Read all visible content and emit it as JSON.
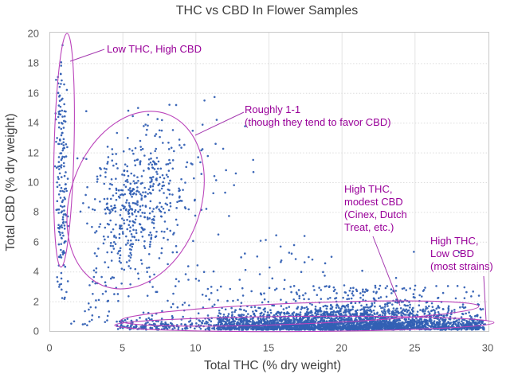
{
  "title": "THC vs CBD In Flower Samples",
  "colors": {
    "point": "#3360b4",
    "ellipse": "#bb44bb",
    "leader": "#a53ab0",
    "annotation_text": "#990099",
    "axis_text": "#3f3f3f",
    "tick_text": "#595959",
    "grid_h": "#dcdcdc",
    "grid_v": "#e3e3e3",
    "border": "#c9c9c9"
  },
  "chart_data": {
    "type": "scatter",
    "title": "THC vs CBD In Flower Samples",
    "xlabel": "Total THC (% dry weight)",
    "ylabel": "Total CBD (% dry weight)",
    "xlim": [
      0,
      30
    ],
    "ylim": [
      0,
      20
    ],
    "x_ticks": [
      0,
      5,
      10,
      15,
      20,
      25,
      30
    ],
    "y_ticks": [
      0,
      2,
      4,
      6,
      8,
      10,
      12,
      14,
      16,
      18,
      20
    ],
    "grid": true,
    "legend": "none",
    "clusters": [
      {
        "name": "low-thc-high-cbd-strip",
        "n": 150,
        "x": {
          "dist": "normal",
          "mean": 0.85,
          "sd": 0.22,
          "min": 0.3,
          "max": 1.5
        },
        "y": {
          "dist": "uniform",
          "min": 4.8,
          "max": 16.3
        }
      },
      {
        "name": "low-thc-high-cbd-top",
        "n": 12,
        "x": {
          "dist": "normal",
          "mean": 0.8,
          "sd": 0.15,
          "min": 0.4,
          "max": 1.2
        },
        "y": {
          "dist": "uniform",
          "min": 16.3,
          "max": 19.3
        }
      },
      {
        "name": "low-thc-tail",
        "n": 16,
        "x": {
          "dist": "normal",
          "mean": 0.9,
          "sd": 0.2,
          "min": 0.4,
          "max": 1.4
        },
        "y": {
          "dist": "uniform",
          "min": 2.0,
          "max": 4.8
        }
      },
      {
        "name": "one-to-one-core",
        "n": 380,
        "rho": 0.35,
        "x": {
          "dist": "normal",
          "mean": 6.1,
          "sd": 1.6,
          "min": 2.2,
          "max": 11.3
        },
        "y": {
          "dist": "normal",
          "mean": 8.6,
          "sd": 2.3,
          "min": 2.8,
          "max": 14.6
        }
      },
      {
        "name": "one-to-one-halo",
        "n": 140,
        "rho": 0.2,
        "x": {
          "dist": "normal",
          "mean": 6.5,
          "sd": 2.6,
          "min": 1.5,
          "max": 13.5
        },
        "y": {
          "dist": "normal",
          "mean": 8.0,
          "sd": 3.6,
          "min": 0.8,
          "max": 15.8
        }
      },
      {
        "name": "mid-low-sparse",
        "n": 70,
        "x": {
          "dist": "uniform",
          "min": 2,
          "max": 12
        },
        "y": {
          "dist": "uniform",
          "min": 0.3,
          "max": 4.5
        }
      },
      {
        "name": "mid-right-sparse",
        "n": 30,
        "x": {
          "dist": "uniform",
          "min": 13,
          "max": 19
        },
        "y": {
          "dist": "uniform",
          "min": 2.5,
          "max": 6.5
        }
      },
      {
        "name": "far-right-sparse",
        "n": 10,
        "x": {
          "dist": "uniform",
          "min": 18,
          "max": 29.5
        },
        "y": {
          "dist": "uniform",
          "min": 2.5,
          "max": 5.5
        }
      },
      {
        "name": "upper-outliers",
        "n": 10,
        "x": {
          "dist": "uniform",
          "min": 10,
          "max": 14.5
        },
        "y": {
          "dist": "uniform",
          "min": 9,
          "max": 15.7
        }
      },
      {
        "name": "band-core",
        "n": 1700,
        "x": {
          "dist": "normal",
          "mean": 19.5,
          "sd": 5.0,
          "min": 6.3,
          "max": 29.8
        },
        "y": {
          "dist": "halfnormal",
          "min": 0.08,
          "sd": 0.5,
          "max": 1.5
        }
      },
      {
        "name": "band-fill",
        "n": 900,
        "x": {
          "dist": "uniform",
          "min": 11.5,
          "max": 29.75
        },
        "y": {
          "dist": "halfnormal",
          "min": 0.08,
          "sd": 0.45,
          "max": 1.4
        }
      },
      {
        "name": "band-upper",
        "n": 420,
        "x": {
          "dist": "normal",
          "mean": 21,
          "sd": 4.3,
          "min": 9.5,
          "max": 29.7
        },
        "y": {
          "dist": "halfnormal",
          "min": 1.0,
          "sd": 0.55,
          "max": 2.3
        }
      },
      {
        "name": "band-top-sparse",
        "n": 110,
        "x": {
          "dist": "normal",
          "mean": 21.5,
          "sd": 4.2,
          "min": 11,
          "max": 29.5
        },
        "y": {
          "dist": "uniform",
          "min": 2.0,
          "max": 3.1
        }
      },
      {
        "name": "band-left-tail",
        "n": 120,
        "x": {
          "dist": "uniform",
          "min": 4.5,
          "max": 9
        },
        "y": {
          "dist": "halfnormal",
          "min": 0.1,
          "sd": 0.4,
          "max": 1.2
        }
      },
      {
        "name": "right-tip-blob",
        "n": 40,
        "x": {
          "dist": "normal",
          "mean": 29.3,
          "sd": 0.4,
          "min": 28.3,
          "max": 29.9
        },
        "y": {
          "dist": "halfnormal",
          "min": 0.15,
          "sd": 0.25,
          "max": 0.8
        }
      },
      {
        "name": "bottom-left-sparse",
        "n": 14,
        "x": {
          "dist": "uniform",
          "min": 0.15,
          "max": 4.2
        },
        "y": {
          "dist": "uniform",
          "min": 0.2,
          "max": 2.6
        }
      }
    ],
    "ellipses": [
      {
        "name": "low-thc-high-cbd",
        "cx": 1.0,
        "cy": 12.15,
        "rx": 0.68,
        "ry": 7.85,
        "rot": 1.5
      },
      {
        "name": "roughly-1-1",
        "cx": 5.9,
        "cy": 8.8,
        "rx": 4.45,
        "ry": 6.15,
        "rot": 20
      },
      {
        "name": "high-thc-modest-cbd",
        "cx": 17.13,
        "cy": 1.18,
        "rx": 12.27,
        "ry": 0.7,
        "rot": -2.3
      },
      {
        "name": "high-thc-low-cbd",
        "cx": 17.45,
        "cy": 0.48,
        "rx": 12.98,
        "ry": 0.51,
        "rot": -0.4
      }
    ],
    "annotations": [
      {
        "name": "low-thc-high-cbd",
        "text": "Low THC, High CBD",
        "px": {
          "left": 134,
          "top": 54
        },
        "leader": [
          131,
          62,
          88,
          77
        ]
      },
      {
        "name": "roughly-1-1",
        "text": "Roughly 1-1\n(though they tend to favor CBD)",
        "px": {
          "left": 307,
          "top": 130
        },
        "leader": [
          306,
          141,
          245,
          170
        ]
      },
      {
        "name": "high-thc-modest-cbd",
        "text": "High THC,\nmodest CBD\n(Cinex, Dutch\nTreat, etc.)",
        "px": {
          "left": 432,
          "top": 230
        },
        "leader": [
          468,
          297,
          502,
          384
        ]
      },
      {
        "name": "high-thc-low-cbd",
        "text": "High THC,\nLow CBD\n(most strains)",
        "px": {
          "left": 540,
          "top": 295
        },
        "leader": [
          607,
          347,
          610,
          403
        ]
      }
    ]
  }
}
